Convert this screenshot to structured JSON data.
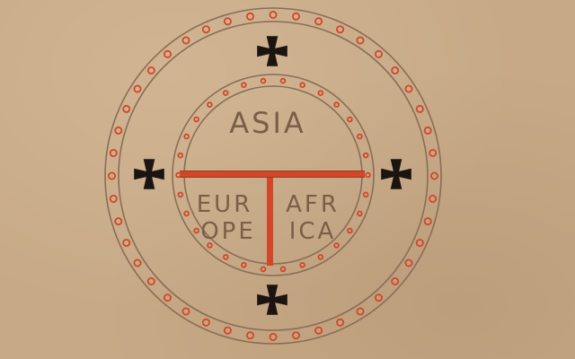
{
  "map": {
    "labels": {
      "asia": "ASIA",
      "europe_line1": "EUR",
      "europe_line2": "OPE",
      "africa_line1": "AFR",
      "africa_line2": "ICA"
    },
    "colors": {
      "parchment": "#c7a986",
      "ring_stroke": "#8a6e55",
      "dot": "#d2462a",
      "t_bar": "#d2462a",
      "cross": "#1c1410",
      "text": "#7a5f48"
    },
    "icons": [
      "cross-pattee-icon",
      "dot-ornament-icon"
    ]
  }
}
